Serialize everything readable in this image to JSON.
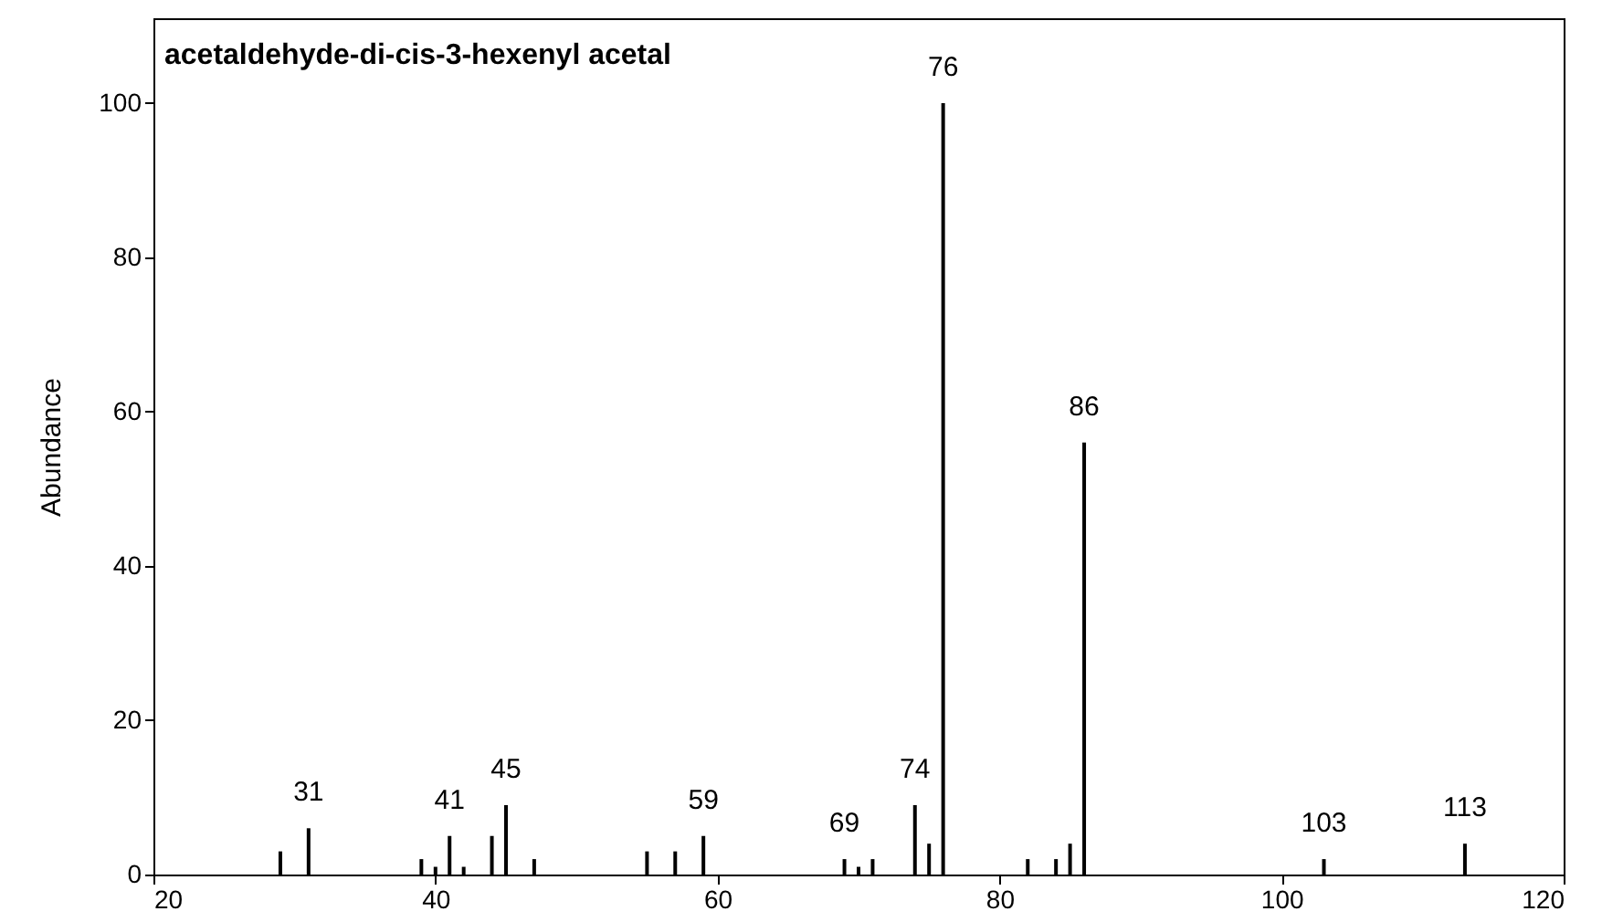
{
  "chart_data": {
    "type": "bar",
    "title": "acetaldehyde-di-cis-3-hexenyl acetal",
    "ylabel": "Abundance",
    "color": "#000000",
    "x": [
      29,
      31,
      39,
      40,
      41,
      42,
      44,
      45,
      47,
      55,
      57,
      59,
      69,
      70,
      71,
      74,
      75,
      76,
      82,
      84,
      85,
      86,
      103,
      113
    ],
    "values": [
      3,
      6,
      2,
      1,
      5,
      1,
      5,
      9,
      2,
      3,
      3,
      5,
      2,
      1,
      2,
      9,
      4,
      100,
      2,
      2,
      4,
      56,
      2,
      4
    ],
    "xlim": [
      20,
      120
    ],
    "xticks": [
      20,
      40,
      60,
      80,
      100,
      120
    ],
    "ylim": [
      0,
      111
    ],
    "yticks": [
      0,
      20,
      40,
      60,
      80,
      100
    ],
    "grid": false,
    "annotations": [
      {
        "text": "31",
        "x": 31,
        "y": 6
      },
      {
        "text": "41",
        "x": 41,
        "y": 5
      },
      {
        "text": "45",
        "x": 45,
        "y": 9
      },
      {
        "text": "59",
        "x": 59,
        "y": 5
      },
      {
        "text": "69",
        "x": 69,
        "y": 2
      },
      {
        "text": "74",
        "x": 74,
        "y": 9
      },
      {
        "text": "76",
        "x": 76,
        "y": 100
      },
      {
        "text": "86",
        "x": 86,
        "y": 56
      },
      {
        "text": "103",
        "x": 103,
        "y": 2
      },
      {
        "text": "113",
        "x": 113,
        "y": 4
      }
    ]
  }
}
